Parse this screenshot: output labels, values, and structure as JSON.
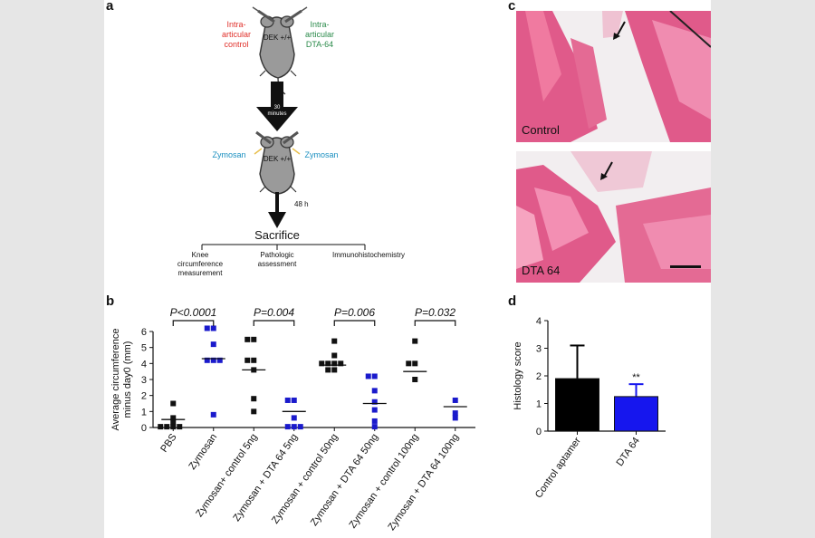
{
  "panel_labels": {
    "a": "a",
    "b": "b",
    "c": "c",
    "d": "d"
  },
  "panel_a": {
    "mouse_label": "DEK +/+",
    "left_injection": "Intra-\narticular\ncontrol",
    "right_injection": "Intra-\narticular\nDTA-64",
    "time_1": "30\nminutes",
    "zymosan_left": "Zymosan",
    "zymosan_right": "Zymosan",
    "time_2": "48 h",
    "sacrifice": "Sacrifice",
    "outcomes": [
      "Knee\ncircumference\nmeasurement",
      "Pathologic\nassessment",
      "Immunohistochemistry"
    ],
    "colors": {
      "control": "#e0302a",
      "dta": "#2a8a4a",
      "zymosan": "#1a8fc0"
    }
  },
  "panel_c": {
    "captions": [
      "Control",
      "DTA 64"
    ]
  },
  "chart_data": [
    {
      "id": "b",
      "type": "scatter",
      "ylabel": "Average circumference\nminus day0 (mm)",
      "ylim": [
        0,
        6
      ],
      "yticks": [
        0,
        1,
        2,
        3,
        4,
        5,
        6
      ],
      "categories": [
        "PBS",
        "Zymosan",
        "Zymosan+ control 5ng",
        "Zymosan + DTA 64 5ng",
        "Zymosan + control 50ng",
        "Zymosan + DTA 64 50ng",
        "Zymosan + control 100ng",
        "Zymosan + DTA 64 100ng"
      ],
      "colors": [
        "#111111",
        "#1a1acc",
        "#111111",
        "#1a1acc",
        "#111111",
        "#1a1acc",
        "#111111",
        "#1a1acc"
      ],
      "means": [
        0.5,
        4.3,
        3.6,
        1.0,
        3.9,
        1.5,
        3.5,
        1.3
      ],
      "points": [
        [
          1.5,
          0.6,
          0.3,
          0.05,
          0.05,
          0.05,
          0.05
        ],
        [
          6.2,
          6.2,
          5.2,
          4.2,
          4.2,
          4.2,
          0.8
        ],
        [
          5.5,
          5.5,
          4.2,
          4.2,
          3.6,
          1.8,
          1.0
        ],
        [
          1.7,
          1.7,
          0.6,
          0.05,
          0.05,
          0.05
        ],
        [
          5.4,
          4.5,
          4.0,
          4.0,
          4.0,
          4.0,
          3.6,
          3.6
        ],
        [
          3.2,
          3.2,
          2.3,
          1.6,
          1.1,
          0.4,
          0.05
        ],
        [
          5.4,
          4.0,
          4.0,
          3.0
        ],
        [
          1.7,
          0.9,
          0.6
        ]
      ],
      "comparisons": [
        {
          "from": 0,
          "to": 1,
          "label": "P<0.0001"
        },
        {
          "from": 2,
          "to": 3,
          "label": "P=0.004"
        },
        {
          "from": 4,
          "to": 5,
          "label": "P=0.006"
        },
        {
          "from": 6,
          "to": 7,
          "label": "P=0.032"
        }
      ]
    },
    {
      "id": "d",
      "type": "bar",
      "ylabel": "Histology score",
      "ylim": [
        0,
        4
      ],
      "yticks": [
        0,
        1,
        2,
        3,
        4
      ],
      "categories": [
        "Control aptamer",
        "DTA 64"
      ],
      "values": [
        1.9,
        1.25
      ],
      "errors": [
        1.2,
        0.45
      ],
      "colors": [
        "#000000",
        "#1616ee"
      ],
      "annotations": [
        "",
        "**"
      ]
    }
  ]
}
